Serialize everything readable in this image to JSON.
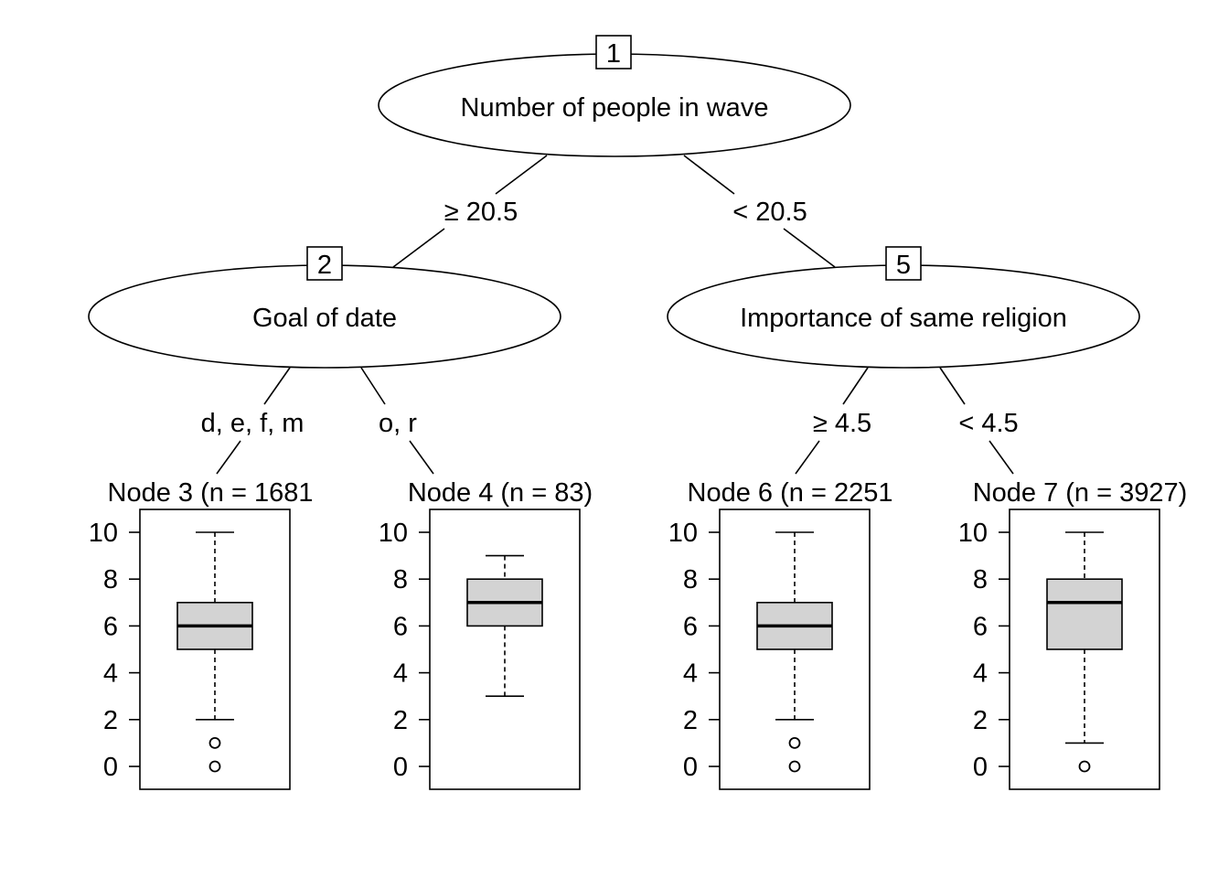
{
  "tree": {
    "inner_nodes": [
      {
        "id": "1",
        "label": "Number of people in wave"
      },
      {
        "id": "2",
        "label": "Goal of date"
      },
      {
        "id": "5",
        "label": "Importance of same religion"
      }
    ],
    "edges": [
      {
        "from": "1",
        "to": "2",
        "label": "≥ 20.5"
      },
      {
        "from": "1",
        "to": "5",
        "label": "< 20.5"
      },
      {
        "from": "2",
        "to": "3",
        "label": "d, e, f, m"
      },
      {
        "from": "2",
        "to": "4",
        "label": "o, r"
      },
      {
        "from": "5",
        "to": "6",
        "label": "≥ 4.5"
      },
      {
        "from": "5",
        "to": "7",
        "label": "< 4.5"
      }
    ],
    "terminal_nodes": [
      {
        "id": "3",
        "title": "Node 3 (n = 1681",
        "n": 1681,
        "whisker_low": 2,
        "q1": 5,
        "median": 6,
        "q3": 7,
        "whisker_high": 10,
        "outliers": [
          1,
          0
        ]
      },
      {
        "id": "4",
        "title": "Node 4 (n = 83)",
        "n": 83,
        "whisker_low": 3,
        "q1": 6,
        "median": 7,
        "q3": 8,
        "whisker_high": 9,
        "outliers": []
      },
      {
        "id": "6",
        "title": "Node 6 (n = 2251",
        "n": 2251,
        "whisker_low": 2,
        "q1": 5,
        "median": 6,
        "q3": 7,
        "whisker_high": 10,
        "outliers": [
          1,
          0
        ]
      },
      {
        "id": "7",
        "title": "Node 7 (n = 3927)",
        "n": 3927,
        "whisker_low": 1,
        "q1": 5,
        "median": 7,
        "q3": 8,
        "whisker_high": 10,
        "outliers": [
          0
        ]
      }
    ],
    "y_axis": {
      "ticks": [
        "0",
        "2",
        "4",
        "6",
        "8",
        "10"
      ],
      "range": [
        0,
        10
      ]
    },
    "colors": {
      "box_fill": "#d3d3d3",
      "line": "#000000",
      "background": "#ffffff"
    }
  }
}
